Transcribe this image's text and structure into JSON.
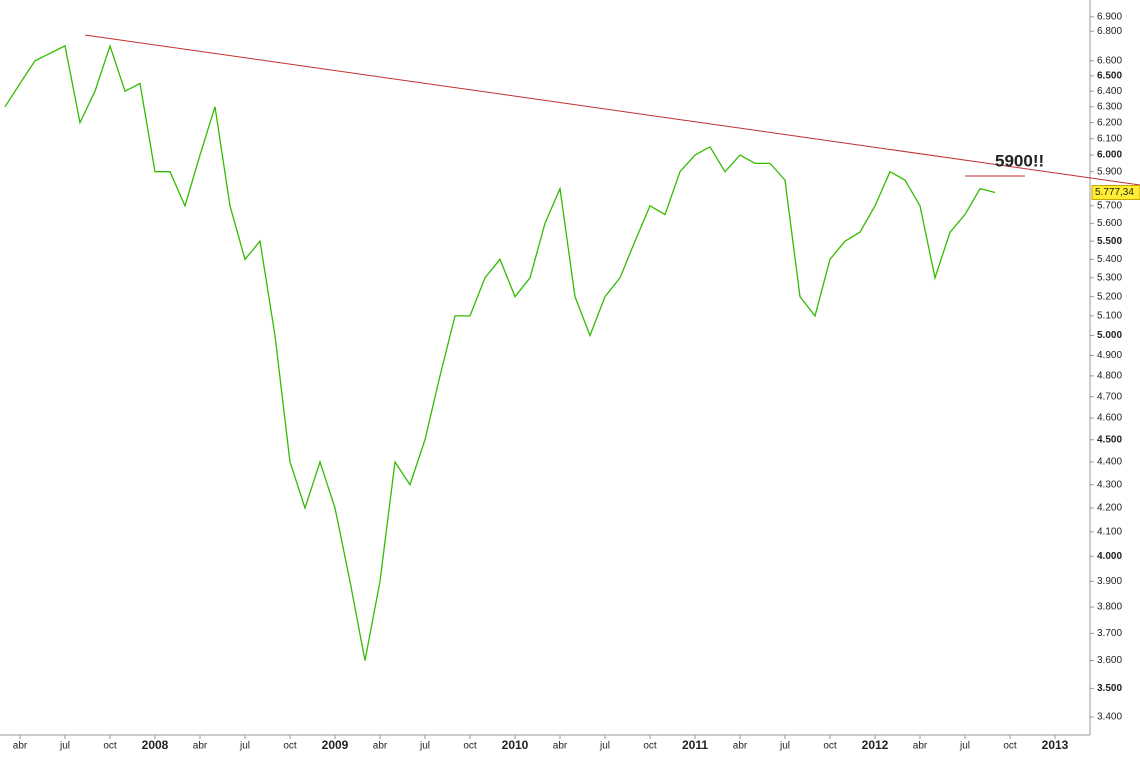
{
  "chart_data": {
    "type": "line",
    "log_scale": true,
    "grid": false,
    "categories": [
      null,
      "abr",
      null,
      null,
      "jul",
      null,
      null,
      "oct",
      null,
      null,
      "2008",
      null,
      null,
      "abr",
      null,
      null,
      "jul",
      null,
      null,
      "oct",
      null,
      null,
      "2009",
      null,
      null,
      "abr",
      null,
      null,
      "jul",
      null,
      null,
      "oct",
      null,
      null,
      "2010",
      null,
      null,
      "abr",
      null,
      null,
      "jul",
      null,
      null,
      "oct",
      null,
      null,
      "2011",
      null,
      null,
      "abr",
      null,
      null,
      "jul",
      null,
      null,
      "oct",
      null,
      null,
      "2012",
      null,
      null,
      "abr",
      null,
      null,
      "jul",
      null,
      null,
      "oct",
      null,
      null,
      "2013",
      null,
      null
    ],
    "series": [
      {
        "color": "#33bb00",
        "values": [
          6300,
          6450,
          6600,
          6650,
          6700,
          6200,
          6400,
          6700,
          6400,
          6450,
          5900,
          5900,
          5700,
          6000,
          6300,
          5700,
          5400,
          5500,
          5000,
          4400,
          4200,
          4400,
          4200,
          3900,
          3600,
          3900,
          4400,
          4300,
          4500,
          4800,
          5100,
          5100,
          5300,
          5400,
          5200,
          5300,
          5600,
          5800,
          5200,
          5000,
          5200,
          5300,
          5500,
          5700,
          5650,
          5900,
          6000,
          6050,
          5900,
          6000,
          5950,
          5950,
          5850,
          5200,
          5100,
          5400,
          5500,
          5550,
          5700,
          5900,
          5850,
          5700,
          5300,
          5550,
          5650,
          5800,
          5777.34,
          null,
          null,
          null,
          null,
          null,
          null
        ]
      }
    ],
    "ylim": [
      3339,
      7018
    ],
    "yticks": [
      {
        "value": 3400,
        "label": "3.400"
      },
      {
        "value": 3500,
        "label": "3.500"
      },
      {
        "value": 3600,
        "label": "3.600"
      },
      {
        "value": 3700,
        "label": "3.700"
      },
      {
        "value": 3800,
        "label": "3.800"
      },
      {
        "value": 3900,
        "label": "3.900"
      },
      {
        "value": 4000,
        "label": "4.000"
      },
      {
        "value": 4100,
        "label": "4.100"
      },
      {
        "value": 4200,
        "label": "4.200"
      },
      {
        "value": 4300,
        "label": "4.300"
      },
      {
        "value": 4400,
        "label": "4.400"
      },
      {
        "value": 4500,
        "label": "4.500"
      },
      {
        "value": 4600,
        "label": "4.600"
      },
      {
        "value": 4700,
        "label": "4.700"
      },
      {
        "value": 4800,
        "label": "4.800"
      },
      {
        "value": 4900,
        "label": "4.900"
      },
      {
        "value": 5000,
        "label": "5.000"
      },
      {
        "value": 5100,
        "label": "5.100"
      },
      {
        "value": 5200,
        "label": "5.200"
      },
      {
        "value": 5300,
        "label": "5.300"
      },
      {
        "value": 5400,
        "label": "5.400"
      },
      {
        "value": 5500,
        "label": "5.500"
      },
      {
        "value": 5600,
        "label": "5.600"
      },
      {
        "value": 5700,
        "label": "5.700"
      },
      {
        "value": 5900,
        "label": "5.900"
      },
      {
        "value": 6000,
        "label": "6.000"
      },
      {
        "value": 6100,
        "label": "6.100"
      },
      {
        "value": 6200,
        "label": "6.200"
      },
      {
        "value": 6300,
        "label": "6.300"
      },
      {
        "value": 6400,
        "label": "6.400"
      },
      {
        "value": 6500,
        "label": "6.500"
      },
      {
        "value": 6600,
        "label": "6.600"
      },
      {
        "value": 6800,
        "label": "6.800"
      },
      {
        "value": 6900,
        "label": "6.900"
      }
    ],
    "annotation": "5900!!",
    "price_tag": {
      "value": 5777.34,
      "label": "5.777,34"
    }
  }
}
